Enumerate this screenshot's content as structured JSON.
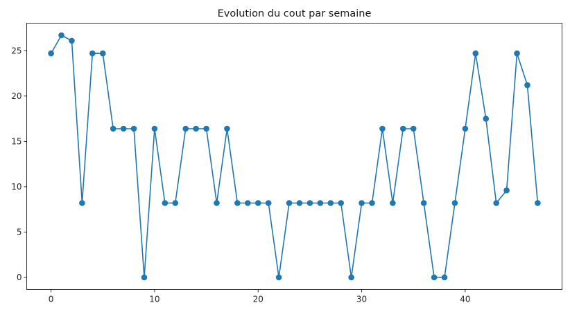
{
  "chart_data": {
    "type": "line",
    "title": "Evolution du cout par semaine",
    "xlabel": "",
    "ylabel": "",
    "xlim": [
      -2.35,
      49.35
    ],
    "ylim": [
      -1.335,
      28.035
    ],
    "xticks": [
      0,
      10,
      20,
      30,
      40
    ],
    "yticks": [
      0,
      5,
      10,
      15,
      20,
      25
    ],
    "grid": false,
    "legend": "none",
    "color": "#1f77b4",
    "marker": "circle",
    "x": [
      0,
      1,
      2,
      3,
      4,
      5,
      6,
      7,
      8,
      9,
      10,
      11,
      12,
      13,
      14,
      15,
      16,
      17,
      18,
      19,
      20,
      21,
      22,
      23,
      24,
      25,
      26,
      27,
      28,
      29,
      30,
      31,
      32,
      33,
      34,
      35,
      36,
      37,
      38,
      39,
      40,
      41,
      42,
      43,
      44,
      45,
      46,
      47
    ],
    "values": [
      24.7,
      26.7,
      26.1,
      8.2,
      24.7,
      24.7,
      16.4,
      16.4,
      16.4,
      0,
      16.4,
      8.2,
      8.2,
      16.4,
      16.4,
      16.4,
      8.2,
      16.4,
      8.2,
      8.2,
      8.2,
      8.2,
      0,
      8.2,
      8.2,
      8.2,
      8.2,
      8.2,
      8.2,
      0,
      8.2,
      8.2,
      16.4,
      8.2,
      16.4,
      16.4,
      8.2,
      0,
      0,
      8.2,
      16.4,
      24.7,
      17.5,
      8.2,
      9.6,
      24.7,
      21.2,
      8.2
    ]
  }
}
